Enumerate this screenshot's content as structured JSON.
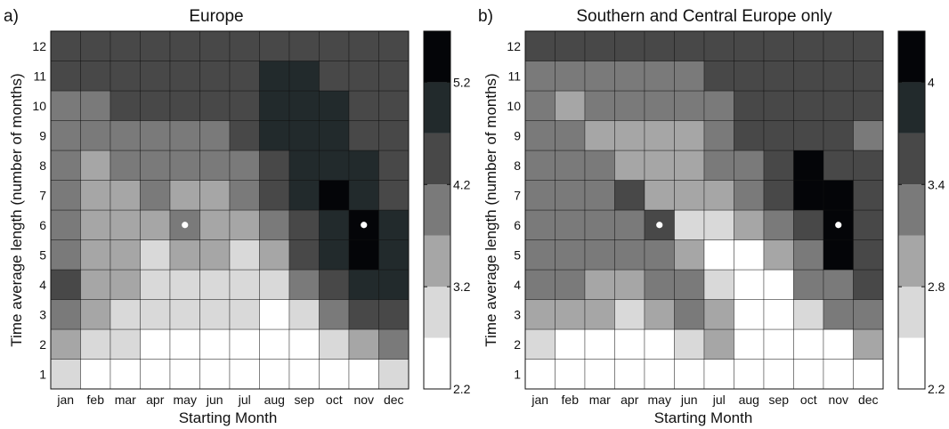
{
  "chart_data": [
    {
      "type": "heatmap",
      "panel_label": "a)",
      "title": "Europe",
      "xlabel": "Starting Month",
      "ylabel": "Time average length (number of months)",
      "x_categories": [
        "jan",
        "feb",
        "mar",
        "apr",
        "may",
        "jun",
        "jul",
        "aug",
        "sep",
        "oct",
        "nov",
        "dec"
      ],
      "y_categories": [
        "1",
        "2",
        "3",
        "4",
        "5",
        "6",
        "7",
        "8",
        "9",
        "10",
        "11",
        "12"
      ],
      "colorbar": {
        "ticks": [
          "2.2",
          "3.2",
          "4.2",
          "5.2"
        ],
        "levels": [
          "#ffffff",
          "#d9d9d9",
          "#a6a6a6",
          "#7a7a7a",
          "#484848",
          "#222a2c",
          "#040508"
        ]
      },
      "markers": [
        {
          "month": "may",
          "length": "6"
        },
        {
          "month": "nov",
          "length": "6"
        }
      ],
      "level_grid": [
        [
          1,
          0,
          0,
          0,
          0,
          0,
          0,
          0,
          0,
          0,
          0,
          1
        ],
        [
          2,
          1,
          1,
          0,
          0,
          0,
          0,
          0,
          0,
          1,
          2,
          3
        ],
        [
          3,
          2,
          1,
          1,
          1,
          1,
          1,
          0,
          1,
          3,
          4,
          4
        ],
        [
          4,
          2,
          2,
          1,
          1,
          1,
          1,
          1,
          3,
          4,
          5,
          5
        ],
        [
          3,
          2,
          2,
          1,
          2,
          2,
          1,
          2,
          4,
          5,
          6,
          5
        ],
        [
          3,
          2,
          2,
          2,
          3,
          2,
          2,
          3,
          4,
          5,
          6,
          5
        ],
        [
          3,
          2,
          2,
          3,
          2,
          2,
          3,
          4,
          5,
          6,
          5,
          4
        ],
        [
          3,
          2,
          3,
          3,
          3,
          3,
          3,
          4,
          5,
          5,
          5,
          4
        ],
        [
          3,
          3,
          3,
          3,
          3,
          3,
          4,
          5,
          5,
          5,
          4,
          4
        ],
        [
          3,
          3,
          4,
          4,
          4,
          4,
          4,
          5,
          5,
          5,
          4,
          4
        ],
        [
          4,
          4,
          4,
          4,
          4,
          4,
          4,
          5,
          5,
          4,
          4,
          4
        ],
        [
          4,
          4,
          4,
          4,
          4,
          4,
          4,
          4,
          4,
          4,
          4,
          4
        ]
      ]
    },
    {
      "type": "heatmap",
      "panel_label": "b)",
      "title": "Southern and Central Europe only",
      "xlabel": "Starting Month",
      "ylabel": "Time average length (number of months)",
      "x_categories": [
        "jan",
        "feb",
        "mar",
        "apr",
        "may",
        "jun",
        "jul",
        "aug",
        "sep",
        "oct",
        "nov",
        "dec"
      ],
      "y_categories": [
        "1",
        "2",
        "3",
        "4",
        "5",
        "6",
        "7",
        "8",
        "9",
        "10",
        "11",
        "12"
      ],
      "colorbar": {
        "ticks": [
          "2.2",
          "2.8",
          "3.4",
          "4"
        ],
        "levels": [
          "#ffffff",
          "#d9d9d9",
          "#a6a6a6",
          "#7a7a7a",
          "#484848",
          "#222a2c",
          "#040508"
        ]
      },
      "markers": [
        {
          "month": "may",
          "length": "6"
        },
        {
          "month": "nov",
          "length": "6"
        }
      ],
      "level_grid": [
        [
          0,
          0,
          0,
          0,
          0,
          0,
          0,
          0,
          0,
          0,
          0,
          0
        ],
        [
          1,
          0,
          0,
          0,
          0,
          1,
          2,
          0,
          0,
          0,
          0,
          2
        ],
        [
          2,
          2,
          2,
          1,
          2,
          3,
          2,
          0,
          0,
          1,
          3,
          3
        ],
        [
          3,
          3,
          2,
          2,
          3,
          3,
          1,
          0,
          0,
          3,
          3,
          4
        ],
        [
          3,
          3,
          3,
          3,
          3,
          2,
          0,
          0,
          2,
          3,
          6,
          4
        ],
        [
          3,
          3,
          3,
          3,
          4,
          1,
          1,
          2,
          3,
          4,
          6,
          4
        ],
        [
          3,
          3,
          3,
          4,
          2,
          2,
          2,
          3,
          4,
          6,
          6,
          4
        ],
        [
          3,
          3,
          3,
          2,
          2,
          2,
          3,
          3,
          4,
          6,
          4,
          4
        ],
        [
          3,
          3,
          2,
          2,
          2,
          2,
          3,
          4,
          4,
          4,
          4,
          3
        ],
        [
          3,
          2,
          3,
          3,
          3,
          3,
          3,
          4,
          4,
          4,
          4,
          4
        ],
        [
          3,
          3,
          3,
          3,
          3,
          3,
          4,
          4,
          4,
          4,
          4,
          4
        ],
        [
          4,
          4,
          4,
          4,
          4,
          4,
          4,
          4,
          4,
          4,
          4,
          4
        ]
      ]
    }
  ]
}
